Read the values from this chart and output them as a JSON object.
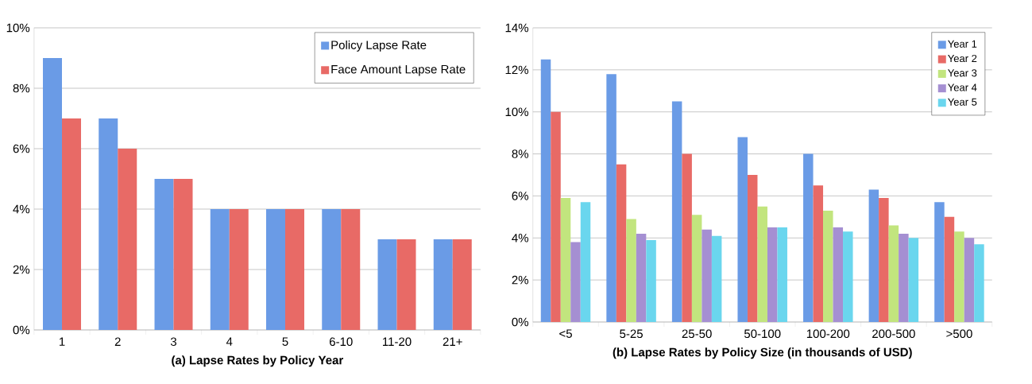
{
  "chart_data": [
    {
      "type": "bar",
      "xlabel": "(a) Lapse Rates by Policy Year",
      "categories": [
        "1",
        "2",
        "3",
        "4",
        "5",
        "6-10",
        "11-20",
        "21+"
      ],
      "series": [
        {
          "name": "Policy Lapse Rate",
          "color": "#6a9be6",
          "values": [
            9,
            7,
            5,
            4,
            4,
            4,
            3,
            3
          ]
        },
        {
          "name": "Face Amount Lapse Rate",
          "color": "#e86a66",
          "values": [
            7,
            6,
            5,
            4,
            4,
            4,
            3,
            3
          ]
        }
      ],
      "ylim": [
        0,
        10
      ],
      "yticks": [
        {
          "value": 0,
          "label": "0%"
        },
        {
          "value": 2,
          "label": "2%"
        },
        {
          "value": 4,
          "label": "4%"
        },
        {
          "value": 6,
          "label": "6%"
        },
        {
          "value": 8,
          "label": "8%"
        },
        {
          "value": 10,
          "label": "10%"
        }
      ],
      "grid": "y",
      "legend": "top right"
    },
    {
      "type": "bar",
      "xlabel": "(b) Lapse Rates by Policy Size (in thousands of USD)",
      "categories": [
        "<5",
        "5-25",
        "25-50",
        "50-100",
        "100-200",
        "200-500",
        ">500"
      ],
      "series": [
        {
          "name": "Year 1",
          "color": "#6a9be6",
          "values": [
            12.5,
            11.8,
            10.5,
            8.8,
            8.0,
            6.3,
            5.7
          ]
        },
        {
          "name": "Year 2",
          "color": "#e86a66",
          "values": [
            10.0,
            7.5,
            8.0,
            7.0,
            6.5,
            5.9,
            5.0
          ]
        },
        {
          "name": "Year 3",
          "color": "#c2e57e",
          "values": [
            5.9,
            4.9,
            5.1,
            5.5,
            5.3,
            4.6,
            4.3
          ]
        },
        {
          "name": "Year 4",
          "color": "#a58fd2",
          "values": [
            3.8,
            4.2,
            4.4,
            4.5,
            4.5,
            4.2,
            4.0
          ]
        },
        {
          "name": "Year 5",
          "color": "#6ad6ee",
          "values": [
            5.7,
            3.9,
            4.1,
            4.5,
            4.3,
            4.0,
            3.7
          ]
        }
      ],
      "ylim": [
        0,
        14
      ],
      "yticks": [
        {
          "value": 0,
          "label": "0%"
        },
        {
          "value": 2,
          "label": "2%"
        },
        {
          "value": 4,
          "label": "4%"
        },
        {
          "value": 6,
          "label": "6%"
        },
        {
          "value": 8,
          "label": "8%"
        },
        {
          "value": 10,
          "label": "10%"
        },
        {
          "value": 12,
          "label": "12%"
        },
        {
          "value": 14,
          "label": "14%"
        }
      ],
      "grid": "y",
      "legend": "top right"
    }
  ]
}
